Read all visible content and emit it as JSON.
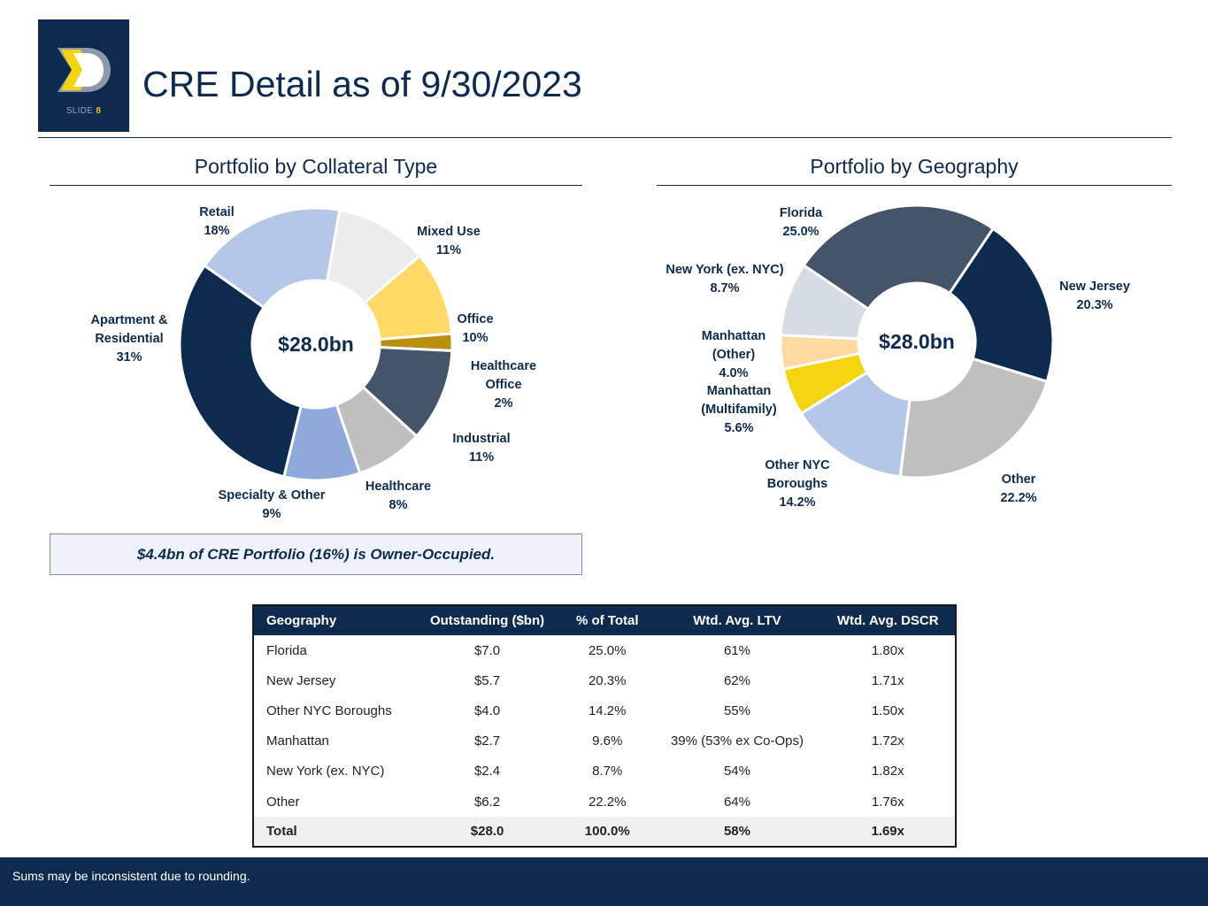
{
  "header": {
    "title": "CRE Detail as of 9/30/2023",
    "slide_label": "SLIDE",
    "slide_number": "8"
  },
  "colors": {
    "navy": "#0d2a4f",
    "slate": "#445469",
    "light_blue": "#b4c7e7",
    "mid_blue": "#8eaadb",
    "light_gray": "#ececec",
    "gray": "#bfbfbf",
    "yellow": "#ffd966",
    "gold": "#b8900b",
    "bright_yellow": "#f4d40f",
    "peach": "#fdd9a0",
    "pale_gray": "#d6dce4"
  },
  "chart_data": [
    {
      "type": "pie",
      "variant": "donut",
      "title": "Portfolio by Collateral Type",
      "center_label": "$28.0bn",
      "start_angle_deg": 10,
      "direction": "clockwise",
      "slices": [
        {
          "label": "Mixed Use",
          "value": 11,
          "display": "11%",
          "color": "#ececec"
        },
        {
          "label": "Office",
          "value": 10,
          "display": "10%",
          "color": "#ffd966"
        },
        {
          "label": "Healthcare Office",
          "value": 2,
          "display": "2%",
          "color": "#b8900b"
        },
        {
          "label": "Industrial",
          "value": 11,
          "display": "11%",
          "color": "#445469"
        },
        {
          "label": "Healthcare",
          "value": 8,
          "display": "8%",
          "color": "#bfbfbf"
        },
        {
          "label": "Specialty & Other",
          "value": 9,
          "display": "9%",
          "color": "#8eaadb"
        },
        {
          "label": "Apartment & Residential",
          "value": 31,
          "display": "31%",
          "color": "#0d2a4f"
        },
        {
          "label": "Retail",
          "value": 18,
          "display": "18%",
          "color": "#b4c7e7"
        }
      ]
    },
    {
      "type": "pie",
      "variant": "donut",
      "title": "Portfolio by Geography",
      "center_label": "$28.0bn",
      "start_angle_deg": 34,
      "direction": "clockwise",
      "slices": [
        {
          "label": "New Jersey",
          "value": 20.3,
          "display": "20.3%",
          "color": "#0d2a4f"
        },
        {
          "label": "Other",
          "value": 22.2,
          "display": "22.2%",
          "color": "#bfbfbf"
        },
        {
          "label": "Other NYC Boroughs",
          "value": 14.2,
          "display": "14.2%",
          "color": "#b4c7e7"
        },
        {
          "label": "Manhattan (Multifamily)",
          "value": 5.6,
          "display": "5.6%",
          "color": "#f4d40f"
        },
        {
          "label": "Manhattan (Other)",
          "value": 4.0,
          "display": "4.0%",
          "color": "#fdd9a0"
        },
        {
          "label": "New York (ex. NYC)",
          "value": 8.7,
          "display": "8.7%",
          "color": "#d6dce4"
        },
        {
          "label": "Florida",
          "value": 25.0,
          "display": "25.0%",
          "color": "#445469"
        }
      ]
    }
  ],
  "note": "$4.4bn of CRE Portfolio (16%) is Owner-Occupied.",
  "table": {
    "columns": [
      "Geography",
      "Outstanding ($bn)",
      "% of Total",
      "Wtd. Avg. LTV",
      "Wtd. Avg. DSCR"
    ],
    "rows": [
      [
        "Florida",
        "$7.0",
        "25.0%",
        "61%",
        "1.80x"
      ],
      [
        "New Jersey",
        "$5.7",
        "20.3%",
        "62%",
        "1.71x"
      ],
      [
        "Other NYC Boroughs",
        "$4.0",
        "14.2%",
        "55%",
        "1.50x"
      ],
      [
        "Manhattan",
        "$2.7",
        "9.6%",
        "39% (53% ex Co-Ops)",
        "1.72x"
      ],
      [
        "New York (ex. NYC)",
        "$2.4",
        "8.7%",
        "54%",
        "1.82x"
      ],
      [
        "Other",
        "$6.2",
        "22.2%",
        "64%",
        "1.76x"
      ]
    ],
    "total": [
      "Total",
      "$28.0",
      "100.0%",
      "58%",
      "1.69x"
    ]
  },
  "footer": {
    "note": "Sums may be inconsistent due to rounding."
  }
}
